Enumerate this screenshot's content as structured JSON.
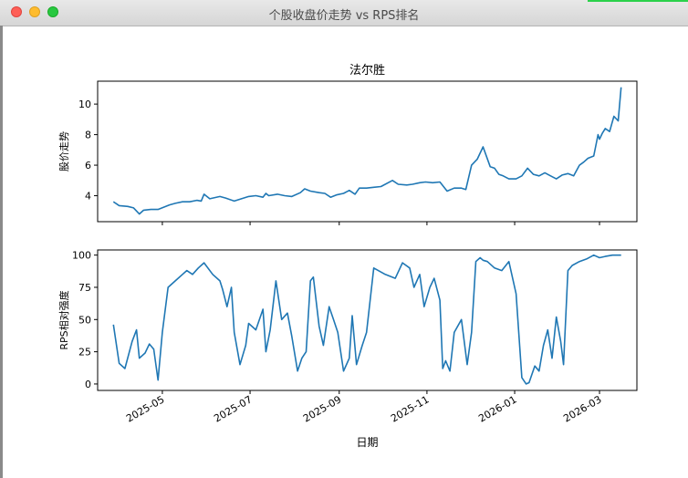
{
  "window": {
    "title": "个股收盘价走势 vs RPS排名"
  },
  "colors": {
    "line": "#1f77b4",
    "frame": "#000000"
  },
  "chart_data": [
    {
      "type": "line",
      "title": "法尔胜",
      "ylabel": "股价走势",
      "ylim": [
        2.3,
        11.5
      ],
      "yticks": [
        4,
        6,
        8,
        10
      ],
      "ytick_labels": [
        "4",
        "6",
        "8",
        "10"
      ],
      "xlim": [
        "2025-03-17",
        "2026-03-27"
      ],
      "grid": false,
      "x": [
        "2025-03-28",
        "2025-04-01",
        "2025-04-07",
        "2025-04-11",
        "2025-04-15",
        "2025-04-18",
        "2025-04-23",
        "2025-04-28",
        "2025-05-06",
        "2025-05-10",
        "2025-05-15",
        "2025-05-20",
        "2025-05-25",
        "2025-05-28",
        "2025-05-30",
        "2025-06-03",
        "2025-06-10",
        "2025-06-14",
        "2025-06-20",
        "2025-06-25",
        "2025-06-30",
        "2025-07-05",
        "2025-07-10",
        "2025-07-12",
        "2025-07-14",
        "2025-07-20",
        "2025-07-25",
        "2025-07-30",
        "2025-08-05",
        "2025-08-08",
        "2025-08-12",
        "2025-08-18",
        "2025-08-22",
        "2025-08-26",
        "2025-08-30",
        "2025-09-04",
        "2025-09-08",
        "2025-09-12",
        "2025-09-15",
        "2025-09-20",
        "2025-09-25",
        "2025-09-30",
        "2025-10-08",
        "2025-10-12",
        "2025-10-18",
        "2025-10-22",
        "2025-10-27",
        "2025-10-31",
        "2025-11-05",
        "2025-11-10",
        "2025-11-15",
        "2025-11-20",
        "2025-11-25",
        "2025-11-28",
        "2025-12-02",
        "2025-12-06",
        "2025-12-10",
        "2025-12-15",
        "2025-12-18",
        "2025-12-21",
        "2025-12-24",
        "2025-12-28",
        "2026-01-02",
        "2026-01-06",
        "2026-01-10",
        "2026-01-14",
        "2026-01-18",
        "2026-01-22",
        "2026-01-26",
        "2026-01-30",
        "2026-02-03",
        "2026-02-07",
        "2026-02-11",
        "2026-02-15",
        "2026-02-18",
        "2026-02-21",
        "2026-02-25",
        "2026-02-28",
        "2026-03-01",
        "2026-03-03",
        "2026-03-05",
        "2026-03-08",
        "2026-03-11",
        "2026-03-14",
        "2026-03-16"
      ],
      "series": [
        {
          "values": [
            3.6,
            3.35,
            3.3,
            3.2,
            2.8,
            3.05,
            3.1,
            3.1,
            3.4,
            3.5,
            3.6,
            3.6,
            3.7,
            3.65,
            4.1,
            3.8,
            3.95,
            3.85,
            3.65,
            3.8,
            3.95,
            4.0,
            3.9,
            4.15,
            4.0,
            4.1,
            4.0,
            3.95,
            4.2,
            4.45,
            4.3,
            4.2,
            4.15,
            3.9,
            4.05,
            4.15,
            4.35,
            4.1,
            4.5,
            4.5,
            4.55,
            4.6,
            5.0,
            4.75,
            4.7,
            4.75,
            4.85,
            4.9,
            4.85,
            4.9,
            4.3,
            4.5,
            4.5,
            4.4,
            6.0,
            6.4,
            7.2,
            5.9,
            5.8,
            5.4,
            5.3,
            5.1,
            5.1,
            5.3,
            5.8,
            5.4,
            5.3,
            5.5,
            5.3,
            5.1,
            5.35,
            5.45,
            5.3,
            6.0,
            6.2,
            6.45,
            6.6,
            8.0,
            7.7,
            8.1,
            8.4,
            8.2,
            9.2,
            8.9,
            11.1
          ]
        }
      ]
    },
    {
      "type": "line",
      "ylabel": "RPS相对强度",
      "xlabel": "日期",
      "ylim": [
        -5,
        104
      ],
      "yticks": [
        0,
        25,
        50,
        75,
        100
      ],
      "ytick_labels": [
        "0",
        "25",
        "50",
        "75",
        "100"
      ],
      "xlim": [
        "2025-03-17",
        "2026-03-27"
      ],
      "xticks": [
        "2025-05-01",
        "2025-07-01",
        "2025-09-01",
        "2025-11-01",
        "2026-01-01",
        "2026-03-01"
      ],
      "xtick_labels": [
        "2025-05",
        "2025-07",
        "2025-09",
        "2025-11",
        "2026-01",
        "2026-03"
      ],
      "grid": false,
      "x": [
        "2025-03-28",
        "2025-04-01",
        "2025-04-05",
        "2025-04-10",
        "2025-04-13",
        "2025-04-15",
        "2025-04-19",
        "2025-04-22",
        "2025-04-25",
        "2025-04-28",
        "2025-05-01",
        "2025-05-05",
        "2025-05-10",
        "2025-05-15",
        "2025-05-18",
        "2025-05-22",
        "2025-05-26",
        "2025-05-30",
        "2025-06-05",
        "2025-06-10",
        "2025-06-12",
        "2025-06-15",
        "2025-06-18",
        "2025-06-20",
        "2025-06-24",
        "2025-06-28",
        "2025-06-30",
        "2025-07-05",
        "2025-07-10",
        "2025-07-12",
        "2025-07-15",
        "2025-07-19",
        "2025-07-23",
        "2025-07-27",
        "2025-07-30",
        "2025-08-03",
        "2025-08-06",
        "2025-08-09",
        "2025-08-12",
        "2025-08-14",
        "2025-08-18",
        "2025-08-21",
        "2025-08-25",
        "2025-08-28",
        "2025-08-31",
        "2025-09-04",
        "2025-09-08",
        "2025-09-10",
        "2025-09-13",
        "2025-09-17",
        "2025-09-20",
        "2025-09-25",
        "2025-10-03",
        "2025-10-10",
        "2025-10-15",
        "2025-10-20",
        "2025-10-23",
        "2025-10-27",
        "2025-10-30",
        "2025-11-03",
        "2025-11-06",
        "2025-11-10",
        "2025-11-12",
        "2025-11-14",
        "2025-11-17",
        "2025-11-20",
        "2025-11-25",
        "2025-11-29",
        "2025-12-02",
        "2025-12-05",
        "2025-12-08",
        "2025-12-10",
        "2025-12-13",
        "2025-12-18",
        "2025-12-23",
        "2025-12-28",
        "2026-01-02",
        "2026-01-06",
        "2026-01-09",
        "2026-01-11",
        "2026-01-15",
        "2026-01-18",
        "2026-01-21",
        "2026-01-24",
        "2026-01-27",
        "2026-01-30",
        "2026-02-02",
        "2026-02-04",
        "2026-02-07",
        "2026-02-10",
        "2026-02-15",
        "2026-02-20",
        "2026-02-25",
        "2026-03-01",
        "2026-03-05",
        "2026-03-10",
        "2026-03-16"
      ],
      "series": [
        {
          "values": [
            46,
            16,
            12,
            33,
            42,
            20,
            24,
            31,
            27,
            3,
            40,
            75,
            80,
            85,
            88,
            85,
            90,
            94,
            85,
            80,
            73,
            60,
            75,
            40,
            15,
            30,
            47,
            42,
            58,
            25,
            42,
            80,
            50,
            55,
            37,
            10,
            20,
            25,
            80,
            83,
            45,
            30,
            60,
            50,
            40,
            10,
            20,
            53,
            15,
            30,
            40,
            90,
            85,
            82,
            94,
            90,
            75,
            85,
            60,
            75,
            82,
            65,
            12,
            18,
            10,
            40,
            50,
            15,
            40,
            95,
            98,
            96,
            95,
            90,
            88,
            95,
            70,
            5,
            0,
            1,
            14,
            10,
            30,
            42,
            20,
            52,
            33,
            15,
            88,
            92,
            95,
            97,
            100,
            98,
            99,
            100,
            100
          ]
        }
      ]
    }
  ]
}
